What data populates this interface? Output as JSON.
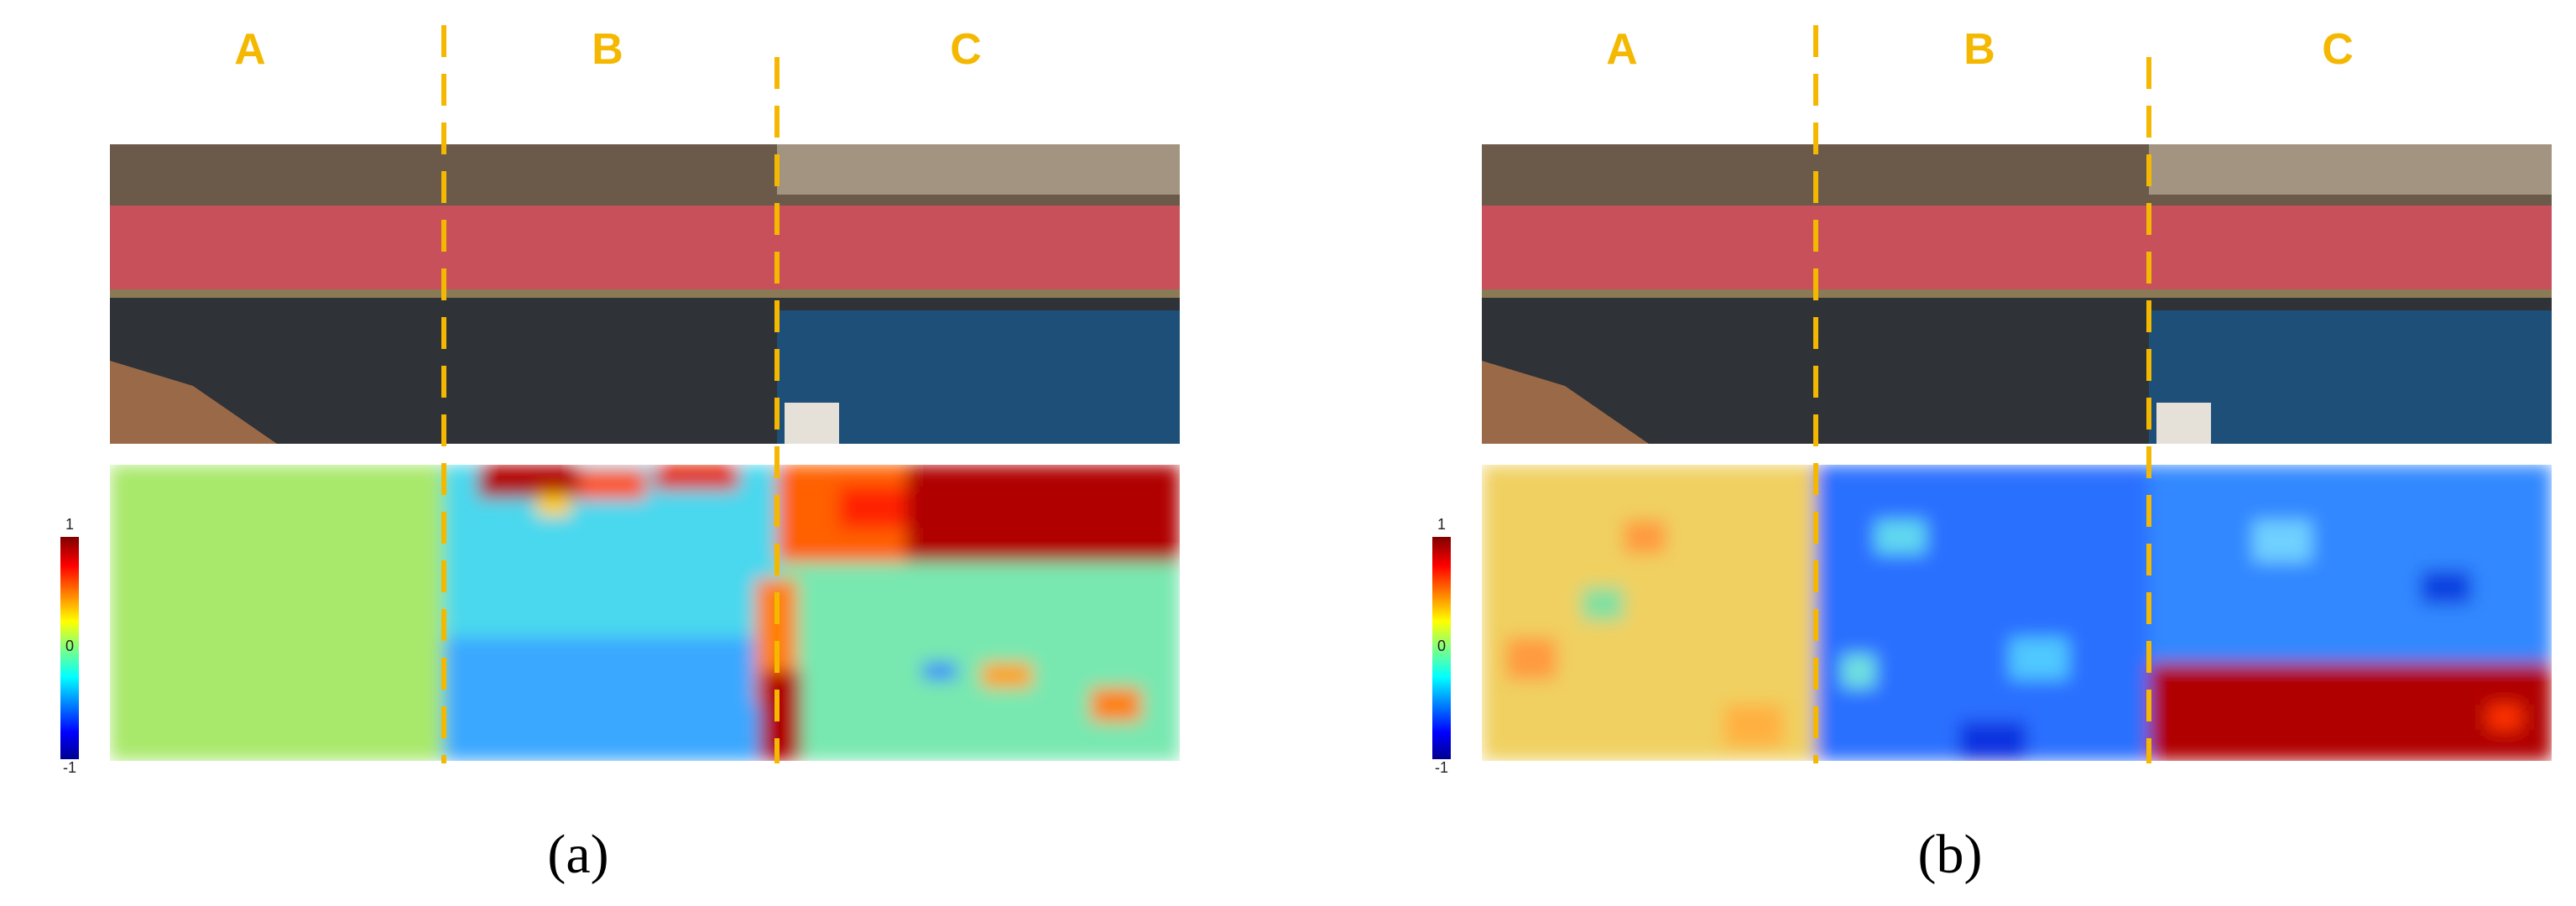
{
  "panels": [
    {
      "zones": [
        "A",
        "B",
        "C"
      ],
      "colorbar_ticks": [
        "1",
        "0",
        "-1"
      ],
      "caption": "(a)"
    },
    {
      "zones": [
        "A",
        "B",
        "C"
      ],
      "colorbar_ticks": [
        "1",
        "0",
        "-1"
      ],
      "caption": "(b)"
    }
  ]
}
